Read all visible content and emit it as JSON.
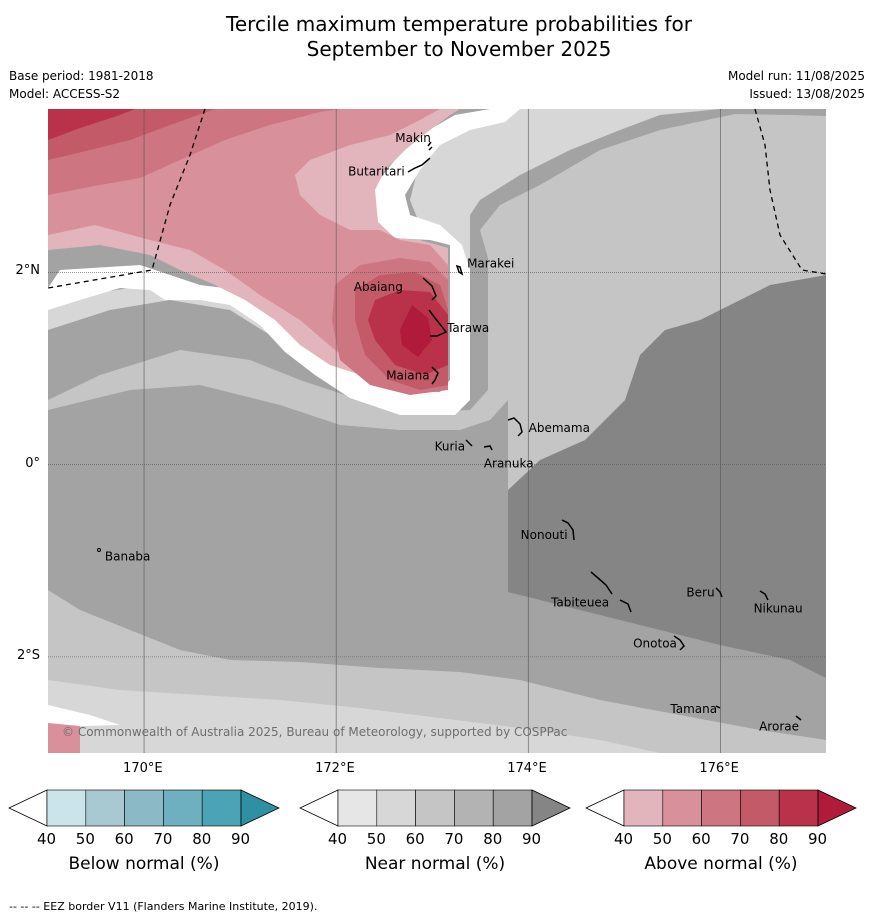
{
  "title_line1": "Tercile maximum temperature probabilities for",
  "title_line2": "September to November 2025",
  "meta": {
    "base_period": "Base period: 1981-2018",
    "model": "Model: ACCESS-S2",
    "model_run": "Model run: 11/08/2025",
    "issued": "Issued: 13/08/2025"
  },
  "map": {
    "extent": {
      "lon_min": 169.0,
      "lon_max": 177.1,
      "lat_min": -3.0,
      "lat_max": 3.7
    },
    "lat_ticks": [
      {
        "value": 2,
        "label": "2°N"
      },
      {
        "value": 0,
        "label": "0°"
      },
      {
        "value": -2,
        "label": "2°S"
      }
    ],
    "lon_ticks": [
      {
        "value": 170,
        "label": "170°E"
      },
      {
        "value": 172,
        "label": "172°E"
      },
      {
        "value": 174,
        "label": "174°E"
      },
      {
        "value": 176,
        "label": "176°E"
      }
    ],
    "gridlines": true,
    "copyright": "© Commonwealth of Australia 2025, Bureau of Meteorology, supported by COSPPac",
    "places": [
      {
        "name": "Makin",
        "lon": 172.99,
        "lat": 3.38
      },
      {
        "name": "Butaritari",
        "lon": 172.75,
        "lat": 3.07
      },
      {
        "name": "Marakei",
        "lon": 173.28,
        "lat": 2.01
      },
      {
        "name": "Abaiang",
        "lon": 172.85,
        "lat": 1.85
      },
      {
        "name": "Tarawa",
        "lon": 173.03,
        "lat": 1.42
      },
      {
        "name": "Maiana",
        "lon": 173.0,
        "lat": 0.93
      },
      {
        "name": "Abemama",
        "lon": 173.9,
        "lat": 0.38
      },
      {
        "name": "Kuria",
        "lon": 173.4,
        "lat": 0.23
      },
      {
        "name": "Aranuka",
        "lon": 173.6,
        "lat": 0.18
      },
      {
        "name": "Banaba",
        "lon": 169.53,
        "lat": -0.87
      },
      {
        "name": "Nonouti",
        "lon": 174.4,
        "lat": -0.67
      },
      {
        "name": "Tabiteuea",
        "lon": 174.8,
        "lat": -1.33
      },
      {
        "name": "Beru",
        "lon": 175.98,
        "lat": -1.33
      },
      {
        "name": "Nikunau",
        "lon": 176.45,
        "lat": -1.35
      },
      {
        "name": "Onotoa",
        "lon": 175.55,
        "lat": -1.8
      },
      {
        "name": "Tamana",
        "lon": 175.98,
        "lat": -2.5
      },
      {
        "name": "Arorae",
        "lon": 176.82,
        "lat": -2.64
      }
    ]
  },
  "colorbars": [
    {
      "name": "below",
      "label": "Below normal (%)",
      "ticks": [
        "40",
        "50",
        "60",
        "70",
        "80",
        "90"
      ],
      "colors": [
        "#ffffff",
        "#cbe3ea",
        "#a8c9d1",
        "#8bb9c5",
        "#6fb0c0",
        "#4aa4b5",
        "#2f8fa3"
      ]
    },
    {
      "name": "near",
      "label": "Near normal (%)",
      "ticks": [
        "40",
        "50",
        "60",
        "70",
        "80",
        "90"
      ],
      "colors": [
        "#ffffff",
        "#e6e6e6",
        "#d7d7d7",
        "#c5c5c5",
        "#b3b3b3",
        "#a3a3a3",
        "#858585"
      ]
    },
    {
      "name": "above",
      "label": "Above normal (%)",
      "ticks": [
        "40",
        "50",
        "60",
        "70",
        "80",
        "90"
      ],
      "colors": [
        "#ffffff",
        "#e2b5bc",
        "#d8919a",
        "#cd7580",
        "#c25a67",
        "#b9324a",
        "#b01a3b"
      ]
    }
  ],
  "footnote": "-- -- -- EEZ border V11 (Flanders Marine Institute, 2019)."
}
